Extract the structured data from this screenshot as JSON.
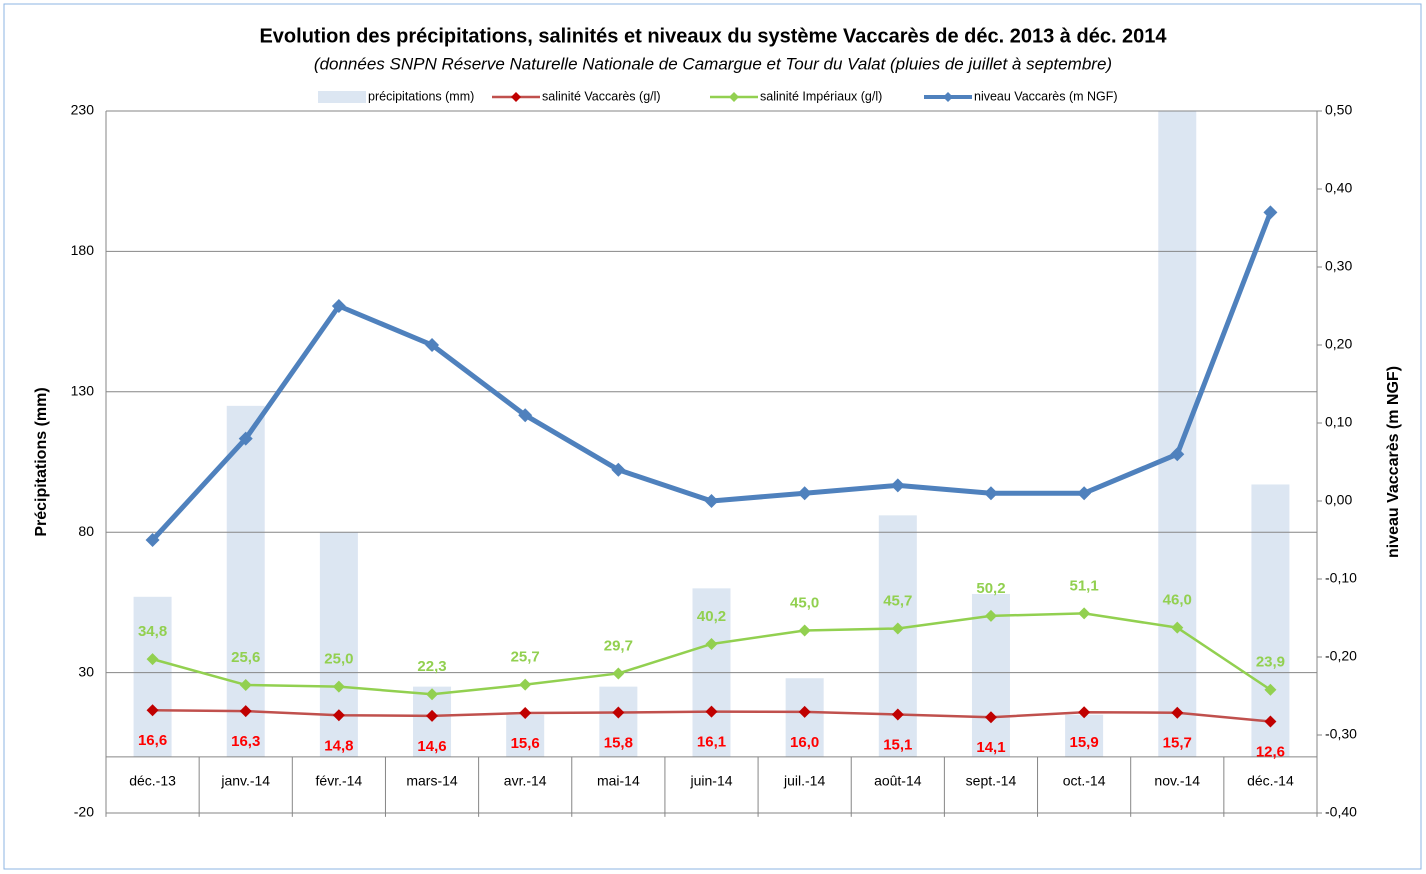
{
  "chart_data": {
    "type": "bar-line",
    "title": "Evolution des précipitations, salinités et niveaux du système Vaccarès de déc. 2013 à déc. 2014",
    "subtitle": "(données SNPN Réserve Naturelle Nationale de Camargue et Tour du Valat (pluies de juillet à septembre)",
    "y_label": "Précipitations (mm)",
    "y2_label": "niveau Vaccarès (m NGF)",
    "categories": [
      "déc.-13",
      "janv.-14",
      "févr.-14",
      "mars-14",
      "avr.-14",
      "mai-14",
      "juin-14",
      "juil.-14",
      "août-14",
      "sept.-14",
      "oct.-14",
      "nov.-14",
      "déc.-14"
    ],
    "ylim": [
      -20,
      230
    ],
    "yticks": [
      -20,
      30,
      80,
      130,
      180,
      230
    ],
    "y2lim": [
      -0.4,
      0.5
    ],
    "y2ticks": [
      {
        "value": -0.4,
        "label": "-0,40"
      },
      {
        "value": -0.3,
        "label": "-0,30"
      },
      {
        "value": -0.2,
        "label": "-0,20"
      },
      {
        "value": -0.1,
        "label": "-0,10"
      },
      {
        "value": 0,
        "label": "0,00"
      },
      {
        "value": 0.1,
        "label": "0,10"
      },
      {
        "value": 0.2,
        "label": "0,20"
      },
      {
        "value": 0.3,
        "label": "0,30"
      },
      {
        "value": 0.4,
        "label": "0,40"
      },
      {
        "value": 0.5,
        "label": "0,50"
      }
    ],
    "grid": true,
    "legend": "top",
    "series": [
      {
        "name": "précipitations (mm)",
        "type": "bar",
        "color": "#dce6f2",
        "values": [
          57,
          125,
          80,
          25,
          15,
          25,
          60,
          28,
          86,
          58,
          15,
          235,
          97
        ]
      },
      {
        "name": "salinité Vaccarès (g/l)",
        "type": "line",
        "color": "#c0504d",
        "marker_color": "#c00000",
        "label_color": "#ff0000",
        "values": [
          16.6,
          16.3,
          14.8,
          14.6,
          15.6,
          15.8,
          16.1,
          16.0,
          15.1,
          14.1,
          15.9,
          15.7,
          12.6
        ],
        "value_labels": [
          "16,6",
          "16,3",
          "14,8",
          "14,6",
          "15,6",
          "15,8",
          "16,1",
          "16,0",
          "15,1",
          "14,1",
          "15,9",
          "15,7",
          "12,6"
        ]
      },
      {
        "name": "salinité Impériaux (g/l)",
        "type": "line",
        "color": "#92d050",
        "marker_color": "#92d050",
        "label_color": "#92d050",
        "values": [
          34.8,
          25.6,
          25.0,
          22.3,
          25.7,
          29.7,
          40.2,
          45.0,
          45.7,
          50.2,
          51.1,
          46.0,
          23.9
        ],
        "value_labels": [
          "34,8",
          "25,6",
          "25,0",
          "22,3",
          "25,7",
          "29,7",
          "40,2",
          "45,0",
          "45,7",
          "50,2",
          "51,1",
          "46,0",
          "23,9"
        ]
      },
      {
        "name": "niveau Vaccarès (m NGF)",
        "type": "line",
        "axis": "y2",
        "color": "#4f81bd",
        "marker_color": "#4f81bd",
        "values": [
          -0.05,
          0.08,
          0.25,
          0.2,
          0.11,
          0.04,
          0.0,
          0.01,
          0.02,
          0.01,
          0.01,
          0.06,
          0.37
        ]
      }
    ]
  }
}
